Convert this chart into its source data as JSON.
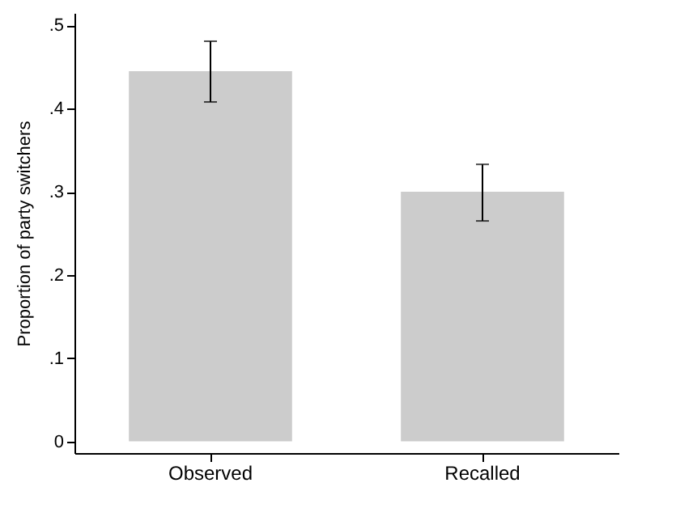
{
  "chart_data": {
    "type": "bar",
    "ylabel": "Proportion of party switchers",
    "categories": [
      "Observed",
      "Recalled"
    ],
    "values": [
      0.445,
      0.3
    ],
    "color": "#cccccc",
    "errors": [
      [
        0.408,
        0.481
      ],
      [
        0.265,
        0.333
      ]
    ],
    "ylim": [
      -0.014,
      0.515
    ],
    "yticks": [
      {
        "value": 0,
        "label": "0"
      },
      {
        "value": 0.1,
        "label": ".1"
      },
      {
        "value": 0.2,
        "label": ".2"
      },
      {
        "value": 0.3,
        "label": ".3"
      },
      {
        "value": 0.4,
        "label": ".4"
      },
      {
        "value": 0.5,
        "label": ".5"
      }
    ],
    "grid": false
  }
}
